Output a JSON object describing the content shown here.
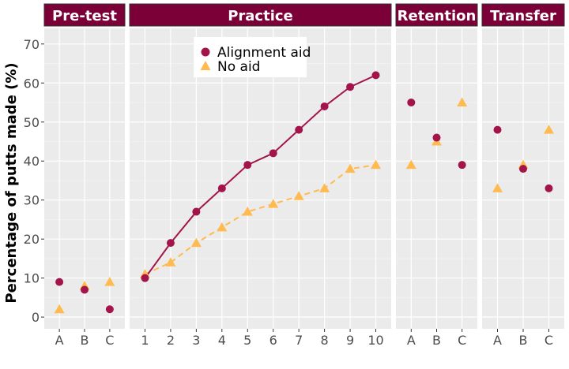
{
  "chart_data": {
    "type": "scatter",
    "ylabel": "Percentage of putts made (%)",
    "ylim": [
      -3,
      74
    ],
    "y_ticks": [
      0,
      10,
      20,
      30,
      40,
      50,
      60,
      70
    ],
    "grid": true,
    "legend_position": "top-left of Practice panel",
    "colors": {
      "alignment_aid": "#a3144a",
      "no_aid": "#ffbb4f",
      "strip": "#7a0037",
      "panel": "#ebebeb"
    },
    "series_names": [
      "Alignment aid",
      "No aid"
    ],
    "panels": [
      {
        "label": "Pre-test",
        "categories": [
          "A",
          "B",
          "C"
        ],
        "connected": false,
        "series": [
          {
            "name": "Alignment aid",
            "values": [
              9,
              7,
              2
            ]
          },
          {
            "name": "No aid",
            "values": [
              2,
              8,
              9
            ]
          }
        ]
      },
      {
        "label": "Practice",
        "categories": [
          "1",
          "2",
          "3",
          "4",
          "5",
          "6",
          "7",
          "8",
          "9",
          "10"
        ],
        "connected": true,
        "series": [
          {
            "name": "Alignment aid",
            "values": [
              10,
              19,
              27,
              33,
              39,
              42,
              48,
              54,
              59,
              62
            ]
          },
          {
            "name": "No aid",
            "values": [
              11,
              14,
              19,
              23,
              27,
              29,
              31,
              33,
              38,
              39
            ]
          }
        ]
      },
      {
        "label": "Retention",
        "categories": [
          "A",
          "B",
          "C"
        ],
        "connected": false,
        "series": [
          {
            "name": "Alignment aid",
            "values": [
              55,
              46,
              39
            ]
          },
          {
            "name": "No aid",
            "values": [
              39,
              45,
              55
            ]
          }
        ]
      },
      {
        "label": "Transfer",
        "categories": [
          "A",
          "B",
          "C"
        ],
        "connected": false,
        "series": [
          {
            "name": "Alignment aid",
            "values": [
              48,
              38,
              33
            ]
          },
          {
            "name": "No aid",
            "values": [
              33,
              39,
              48
            ]
          }
        ]
      }
    ]
  }
}
